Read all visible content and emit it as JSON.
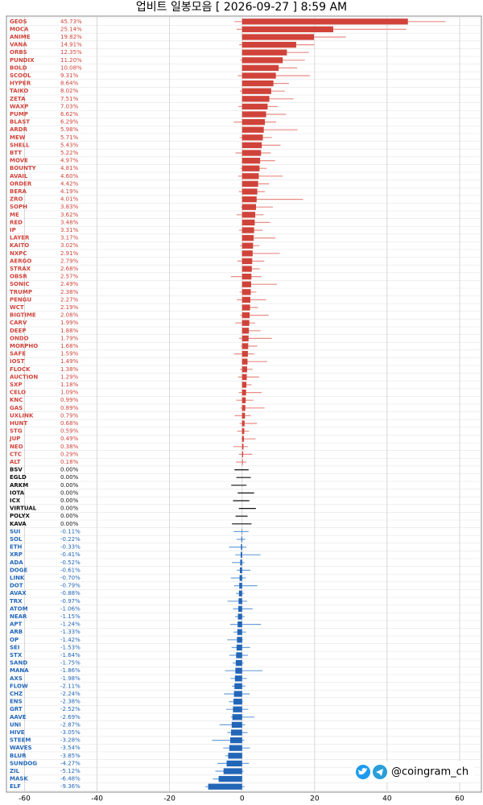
{
  "chart_data": {
    "type": "range-bar",
    "title": "업비트 일봉모음 [ 2026-09-27 ]  8:59 AM",
    "watermark": "@coingram_ch",
    "colors": {
      "up": "#d0433a",
      "flat": "#111111",
      "down": "#2266b8"
    },
    "range_colors": {
      "up": "#e88c84",
      "flat": "#111111",
      "down": "#6f9fd8"
    },
    "xlim": [
      -65,
      66
    ],
    "xticks": [
      -60,
      -40,
      -20,
      0,
      20,
      40,
      60
    ],
    "grid": true,
    "categories": [
      "GEOS",
      "MOCA",
      "ANIME",
      "VANA",
      "ORBS",
      "PUNDIX",
      "BOLD",
      "SCOOL",
      "HYPER",
      "TAIKO",
      "ZETA",
      "WAXP",
      "PUMP",
      "BLAST",
      "ARDR",
      "MEW",
      "SHELL",
      "BTT",
      "MOVE",
      "BOUNTY",
      "AVAIL",
      "ORDER",
      "BERA",
      "ZRO",
      "SOPH",
      "ME",
      "RED",
      "IP",
      "LAYER",
      "KAITO",
      "NXPC",
      "AERGO",
      "STRAX",
      "OBSR",
      "SONIC",
      "TRUMP",
      "PENGU",
      "WCT",
      "BIGTIME",
      "CARV",
      "DEEP",
      "ONDO",
      "MORPHO",
      "SAFE",
      "IOST",
      "FLOCK",
      "AUCTION",
      "SXP",
      "CELO",
      "KNC",
      "GAS",
      "UXLINK",
      "HUNT",
      "STG",
      "JUP",
      "NEO",
      "CTC",
      "ALT",
      "BSV",
      "EGLD",
      "ARKM",
      "IOTA",
      "ICX",
      "VIRTUAL",
      "POLYX",
      "KAVA",
      "SUI",
      "SOL",
      "ETH",
      "XRP",
      "ADA",
      "DOGE",
      "LINK",
      "DOT",
      "AVAX",
      "TRX",
      "ATOM",
      "NEAR",
      "APT",
      "ARB",
      "OP",
      "SEI",
      "STX",
      "SAND",
      "MANA",
      "AXS",
      "FLOW",
      "CHZ",
      "ENS",
      "GRT",
      "AAVE",
      "UNI",
      "HIVE",
      "STEEM",
      "WAVES",
      "BLUR",
      "SUNDOG",
      "ZIL",
      "MASK",
      "ELF"
    ],
    "values": [
      45.73,
      25.14,
      19.82,
      14.91,
      12.35,
      11.2,
      10.08,
      9.31,
      8.64,
      8.02,
      7.51,
      7.03,
      6.62,
      6.29,
      5.98,
      5.71,
      5.43,
      5.22,
      4.97,
      4.81,
      4.6,
      4.42,
      4.19,
      4.01,
      3.83,
      3.62,
      3.48,
      3.31,
      3.17,
      3.02,
      2.91,
      2.79,
      2.68,
      2.57,
      2.49,
      2.38,
      2.27,
      2.19,
      2.08,
      1.99,
      1.88,
      1.79,
      1.68,
      1.59,
      1.49,
      1.38,
      1.29,
      1.18,
      1.09,
      0.99,
      0.89,
      0.79,
      0.68,
      0.59,
      0.49,
      0.38,
      0.29,
      0.18,
      0,
      0,
      0,
      0,
      0,
      0,
      0,
      0,
      -0.11,
      -0.22,
      -0.33,
      -0.41,
      -0.52,
      -0.61,
      -0.7,
      -0.79,
      -0.88,
      -0.97,
      -1.06,
      -1.15,
      -1.24,
      -1.33,
      -1.42,
      -1.53,
      -1.64,
      -1.75,
      -1.86,
      -1.98,
      -2.11,
      -2.24,
      -2.38,
      -2.52,
      -2.69,
      -2.87,
      -3.05,
      -3.28,
      -3.54,
      -3.85,
      -4.27,
      -5.12,
      -6.48,
      -9.36
    ],
    "value_labels": [
      "45.73%",
      "25.14%",
      "19.82%",
      "14.91%",
      "12.35%",
      "11.20%",
      "10.08%",
      "9.31%",
      "8.64%",
      "8.02%",
      "7.51%",
      "7.03%",
      "6.62%",
      "6.29%",
      "5.98%",
      "5.71%",
      "5.43%",
      "5.22%",
      "4.97%",
      "4.81%",
      "4.60%",
      "4.42%",
      "4.19%",
      "4.01%",
      "3.83%",
      "3.62%",
      "3.48%",
      "3.31%",
      "3.17%",
      "3.02%",
      "2.91%",
      "2.79%",
      "2.68%",
      "2.57%",
      "2.49%",
      "2.38%",
      "2.27%",
      "2.19%",
      "2.08%",
      "1.99%",
      "1.88%",
      "1.79%",
      "1.68%",
      "1.59%",
      "1.49%",
      "1.38%",
      "1.29%",
      "1.18%",
      "1.09%",
      "0.99%",
      "0.89%",
      "0.79%",
      "0.68%",
      "0.59%",
      "0.49%",
      "0.38%",
      "0.29%",
      "0.18%",
      "0.00%",
      "0.00%",
      "0.00%",
      "0.00%",
      "0.00%",
      "0.00%",
      "0.00%",
      "0.00%",
      "-0.11%",
      "-0.22%",
      "-0.33%",
      "-0.41%",
      "-0.52%",
      "-0.61%",
      "-0.70%",
      "-0.79%",
      "-0.88%",
      "-0.97%",
      "-1.06%",
      "-1.15%",
      "-1.24%",
      "-1.33%",
      "-1.42%",
      "-1.53%",
      "-1.64%",
      "-1.75%",
      "-1.86%",
      "-1.98%",
      "-2.11%",
      "-2.24%",
      "-2.38%",
      "-2.52%",
      "-2.69%",
      "-2.87%",
      "-3.05%",
      "-3.28%",
      "-3.54%",
      "-3.85%",
      "-4.27%",
      "-5.12%",
      "-6.48%",
      "-9.36%"
    ],
    "low": [
      -2.1,
      -1.5,
      0.2,
      -0.8,
      1.1,
      -0.5,
      0.4,
      -1.2,
      0.3,
      -0.6,
      0,
      -1,
      0.5,
      -2.3,
      0.1,
      -0.7,
      0.2,
      -1.8,
      0.3,
      -0.4,
      -1.1,
      0,
      -0.9,
      0.6,
      -0.3,
      -1.5,
      0.2,
      -0.8,
      0.1,
      -0.6,
      -0.2,
      -1.3,
      0.4,
      -3.1,
      0,
      -0.7,
      -1.4,
      0.2,
      -0.5,
      -1.9,
      0.1,
      -0.8,
      -0.3,
      -2.2,
      0,
      -0.6,
      -1.1,
      0.2,
      -0.9,
      -1.6,
      -0.4,
      -2,
      -0.7,
      -1.3,
      -0.2,
      -2.4,
      -0.9,
      -1.7,
      -2.1,
      -1.6,
      -3,
      -1.2,
      -2.5,
      -0.9,
      -1.8,
      -2.8,
      -2.3,
      -1.5,
      -3.6,
      -1.9,
      -2.8,
      -1.4,
      -3.1,
      -2.2,
      -1.7,
      -4,
      -2.5,
      -1.9,
      -3.3,
      -2.4,
      -4.1,
      -2.9,
      -3.5,
      -2.6,
      -4.7,
      -3.2,
      -2.8,
      -5,
      -3.6,
      -4.4,
      -3.1,
      -6.2,
      -4.1,
      -8.3,
      -5.2,
      -4.6,
      -6.8,
      -7.4,
      -8.1,
      -10.2
    ],
    "high": [
      56.1,
      45.3,
      28.6,
      19.9,
      18.4,
      17.3,
      15.2,
      18.7,
      12.9,
      11.8,
      14.2,
      9.8,
      12.1,
      9.4,
      15.3,
      8.2,
      10.6,
      7.9,
      9.1,
      6.8,
      11.2,
      7.4,
      6.3,
      16.8,
      8.5,
      5.9,
      7.7,
      5.6,
      9.2,
      4.8,
      10.4,
      6.1,
      4.9,
      5.3,
      9.6,
      3.9,
      6.6,
      4.4,
      7.3,
      3.6,
      5.1,
      8.2,
      4.2,
      3.3,
      6.9,
      2.9,
      4.7,
      2.6,
      5.4,
      3.1,
      6.2,
      2.4,
      4.1,
      1.9,
      3.7,
      1.6,
      2.8,
      1.2,
      1.8,
      2.4,
      1.2,
      3.3,
      2,
      3.8,
      1.5,
      2.6,
      1.8,
      0.9,
      1.2,
      5.1,
      0.6,
      2.3,
      1,
      4.2,
      0.5,
      1.4,
      2.9,
      0.7,
      5.2,
      1.1,
      0.3,
      2.2,
      1.6,
      0.4,
      5.6,
      1.3,
      0.9,
      2.1,
      0.2,
      1.7,
      3.4,
      0.8,
      1.5,
      0.6,
      2.2,
      0.1,
      1.9,
      0.4,
      -0.2,
      0.7
    ]
  }
}
